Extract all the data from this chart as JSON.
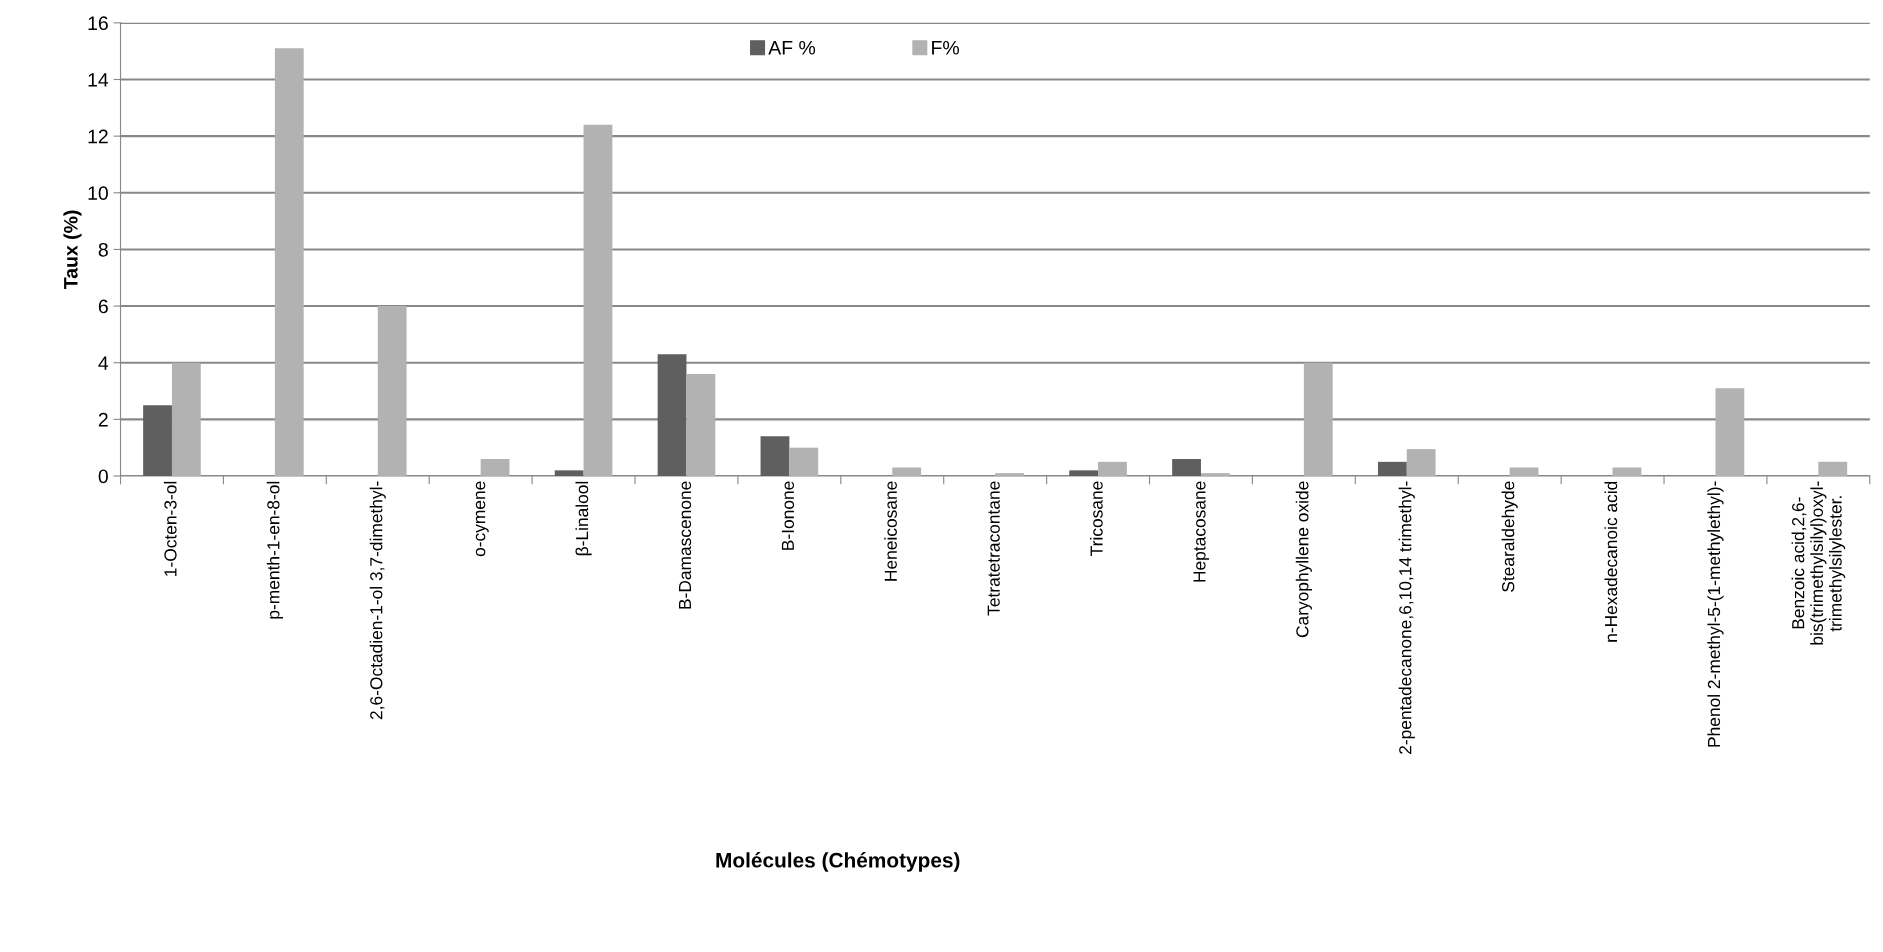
{
  "chart_data": {
    "type": "bar",
    "xlabel": "Molécules (Chémotypes)",
    "ylabel": "Taux (%)",
    "categories": [
      "1-Octen-3-ol",
      "p-menth-1-en-8-ol",
      "2,6-Octadien-1-ol 3,7-dimethyl-",
      "o-cymene",
      "β-Linalool",
      "B-Damascenone",
      "B-Ionone",
      "Heneicosane",
      "Tetratetracontane",
      "Tricosane",
      "Heptacosane",
      "Caryophyllene oxide",
      "2-pentadecanone,6,10,14 trimethyl-",
      "Stearaldehyde",
      "n-Hexadecanoic acid",
      "Phenol 2-methyl-5-(1-methylethyl)-",
      "Benzoic acid,2,6-\nbis(trimethylsilyl)oxyl-\ntrimethylsilylester."
    ],
    "series": [
      {
        "name": "AF %",
        "color": "#5f5f5f",
        "values": [
          2.5,
          0,
          0,
          0,
          0.2,
          4.3,
          1.4,
          0,
          0,
          0.2,
          0.6,
          0,
          0.5,
          0,
          0,
          0,
          0
        ]
      },
      {
        "name": "F%",
        "color": "#b2b2b2",
        "values": [
          4.0,
          15.1,
          6.0,
          0.6,
          12.4,
          3.6,
          1.0,
          0.3,
          0.1,
          0.5,
          0.1,
          4.0,
          0.95,
          0.3,
          0.3,
          3.1,
          0.5
        ]
      }
    ],
    "ylim": [
      0,
      16
    ],
    "yticks": [
      0,
      2,
      4,
      6,
      8,
      10,
      12,
      14,
      16
    ],
    "grid": "y",
    "legend": "top"
  }
}
